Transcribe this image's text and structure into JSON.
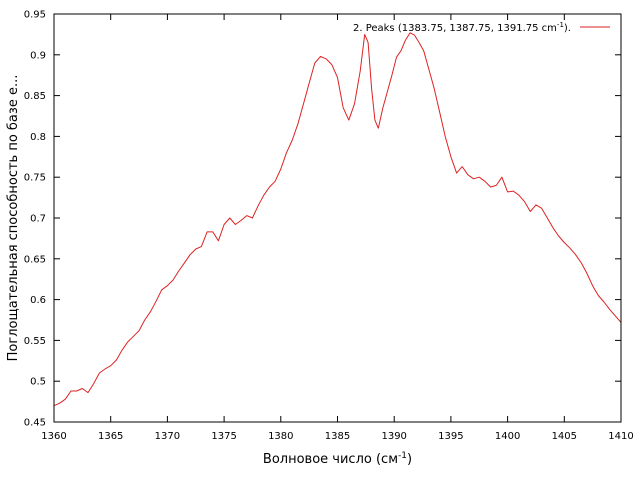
{
  "chart_data": {
    "type": "line",
    "xlabel_main": "Волновое число (см",
    "xlabel_sup": "-1",
    "xlabel_end": ")",
    "ylabel": "Поглощательная способность по базе е...",
    "xlim": [
      1360,
      1410
    ],
    "ylim": [
      0.45,
      0.95
    ],
    "xticks": [
      1360,
      1365,
      1370,
      1375,
      1380,
      1385,
      1390,
      1395,
      1400,
      1405,
      1410
    ],
    "yticks": [
      0.45,
      0.5,
      0.55,
      0.6,
      0.65,
      0.7,
      0.75,
      0.8,
      0.85,
      0.9,
      0.95
    ],
    "grid": false,
    "legend_position": "top-right",
    "series": [
      {
        "name": "2. Peaks (1383.75, 1387.75, 1391.75 cm",
        "name_sup": "-1",
        "name_end": ").",
        "color": "#dd2222",
        "x": [
          1360.0,
          1360.5,
          1361.0,
          1361.5,
          1362.0,
          1362.5,
          1363.0,
          1363.5,
          1364.0,
          1364.5,
          1365.0,
          1365.5,
          1366.0,
          1366.5,
          1367.0,
          1367.5,
          1368.0,
          1368.5,
          1369.0,
          1369.5,
          1370.0,
          1370.5,
          1371.0,
          1371.5,
          1372.0,
          1372.5,
          1373.0,
          1373.5,
          1374.0,
          1374.5,
          1375.0,
          1375.5,
          1376.0,
          1376.5,
          1377.0,
          1377.5,
          1378.0,
          1378.5,
          1379.0,
          1379.5,
          1380.0,
          1380.5,
          1381.0,
          1381.5,
          1382.0,
          1382.5,
          1383.0,
          1383.5,
          1384.0,
          1384.5,
          1385.0,
          1385.5,
          1386.0,
          1386.5,
          1387.0,
          1387.4,
          1387.7,
          1388.0,
          1388.3,
          1388.6,
          1389.0,
          1389.4,
          1389.8,
          1390.2,
          1390.6,
          1391.0,
          1391.4,
          1391.8,
          1392.2,
          1392.6,
          1393.0,
          1393.5,
          1394.0,
          1394.5,
          1395.0,
          1395.5,
          1396.0,
          1396.5,
          1397.0,
          1397.5,
          1398.0,
          1398.5,
          1399.0,
          1399.5,
          1400.0,
          1400.5,
          1401.0,
          1401.5,
          1402.0,
          1402.5,
          1403.0,
          1403.5,
          1404.0,
          1404.5,
          1405.0,
          1405.5,
          1406.0,
          1406.5,
          1407.0,
          1407.5,
          1408.0,
          1408.5,
          1409.0,
          1409.5,
          1410.0
        ],
        "y": [
          0.47,
          0.473,
          0.478,
          0.488,
          0.488,
          0.491,
          0.486,
          0.497,
          0.51,
          0.515,
          0.519,
          0.526,
          0.538,
          0.548,
          0.555,
          0.562,
          0.575,
          0.585,
          0.598,
          0.612,
          0.617,
          0.624,
          0.635,
          0.645,
          0.655,
          0.662,
          0.665,
          0.683,
          0.683,
          0.672,
          0.692,
          0.7,
          0.692,
          0.697,
          0.703,
          0.7,
          0.715,
          0.728,
          0.738,
          0.745,
          0.76,
          0.78,
          0.795,
          0.815,
          0.84,
          0.865,
          0.89,
          0.898,
          0.895,
          0.888,
          0.872,
          0.835,
          0.82,
          0.84,
          0.88,
          0.925,
          0.915,
          0.86,
          0.82,
          0.81,
          0.835,
          0.855,
          0.875,
          0.897,
          0.905,
          0.918,
          0.927,
          0.924,
          0.915,
          0.905,
          0.885,
          0.86,
          0.83,
          0.8,
          0.775,
          0.755,
          0.763,
          0.753,
          0.748,
          0.75,
          0.745,
          0.738,
          0.74,
          0.75,
          0.732,
          0.733,
          0.728,
          0.72,
          0.708,
          0.716,
          0.712,
          0.7,
          0.688,
          0.678,
          0.67,
          0.663,
          0.655,
          0.645,
          0.632,
          0.617,
          0.605,
          0.597,
          0.588,
          0.58,
          0.572
        ]
      }
    ]
  }
}
